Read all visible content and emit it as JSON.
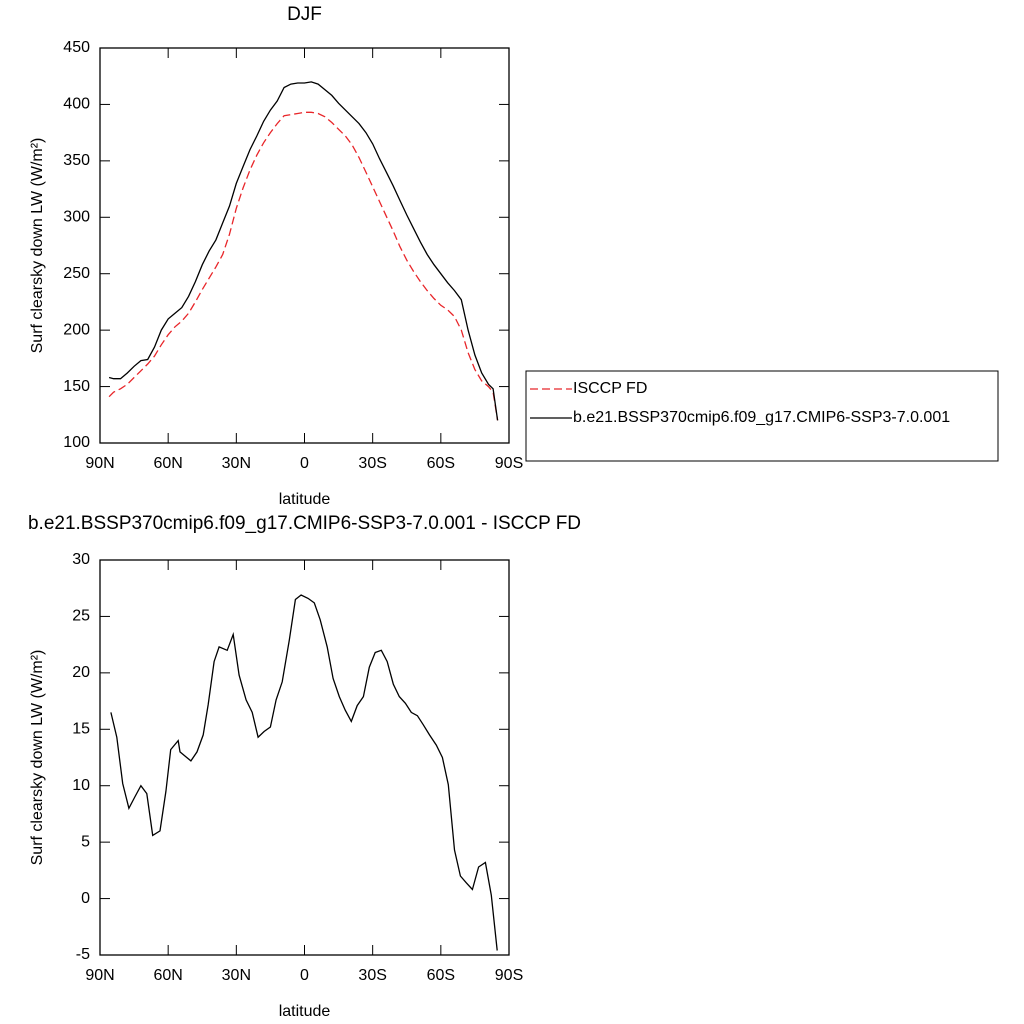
{
  "chart_data": [
    {
      "type": "line",
      "title": "DJF",
      "xlabel": "latitude",
      "ylabel": "Surf clearsky down LW (W/m²)",
      "xlim": [
        90,
        -90
      ],
      "xticks": [
        {
          "value": 90,
          "label": "90N"
        },
        {
          "value": 60,
          "label": "60N"
        },
        {
          "value": 30,
          "label": "30N"
        },
        0,
        {
          "value": -30,
          "label": "30S"
        },
        {
          "value": -60,
          "label": "60S"
        },
        {
          "value": -90,
          "label": "90S"
        }
      ],
      "ylim": [
        100,
        450
      ],
      "yticks": [
        100,
        150,
        200,
        250,
        300,
        350,
        400,
        450
      ],
      "legend": "right",
      "x": [
        86,
        84,
        81,
        78,
        75,
        72,
        69,
        66,
        63,
        60,
        57,
        54,
        51,
        48,
        45,
        42,
        39,
        36,
        33,
        30,
        27,
        24,
        21,
        18,
        15,
        12,
        9,
        6,
        3,
        0,
        -3,
        -6,
        -9,
        -12,
        -15,
        -18,
        -21,
        -24,
        -27,
        -30,
        -33,
        -36,
        -39,
        -42,
        -45,
        -48,
        -51,
        -54,
        -57,
        -60,
        -63,
        -66,
        -69,
        -72,
        -75,
        -78,
        -81,
        -83,
        -85
      ],
      "series": [
        {
          "name": "ISCCP FD",
          "color": "#e8262a",
          "line_style": "dashed",
          "values": [
            141,
            145,
            148,
            152,
            158,
            164,
            170,
            177,
            187,
            196,
            203,
            208,
            215,
            225,
            236,
            246,
            256,
            267,
            285,
            308,
            326,
            342,
            355,
            366,
            375,
            383,
            390,
            391,
            392,
            393,
            393,
            392,
            389,
            384,
            378,
            372,
            364,
            353,
            340,
            327,
            314,
            301,
            288,
            274,
            262,
            252,
            243,
            235,
            228,
            222,
            218,
            212,
            200,
            180,
            165,
            155,
            150,
            145,
            120
          ]
        },
        {
          "name": "b.e21.BSSP370cmip6.f09_g17.CMIP6-SSP3-7.0.001",
          "color": "#000000",
          "line_style": "solid",
          "values": [
            158,
            157,
            157,
            162,
            168,
            173,
            174,
            185,
            200,
            210,
            215,
            220,
            230,
            243,
            258,
            270,
            280,
            295,
            310,
            330,
            345,
            360,
            372,
            385,
            395,
            403,
            415,
            418,
            419,
            419,
            420,
            418,
            413,
            408,
            401,
            395,
            389,
            383,
            375,
            365,
            352,
            340,
            328,
            315,
            302,
            290,
            278,
            267,
            258,
            250,
            242,
            235,
            227,
            200,
            178,
            162,
            152,
            148,
            120
          ]
        }
      ]
    },
    {
      "type": "line",
      "title": "b.e21.BSSP370cmip6.f09_g17.CMIP6-SSP3-7.0.001 - ISCCP FD",
      "xlabel": "latitude",
      "ylabel": "Surf clearsky down LW (W/m²)",
      "xlim": [
        90,
        -90
      ],
      "xticks": [
        {
          "value": 90,
          "label": "90N"
        },
        {
          "value": 60,
          "label": "60N"
        },
        {
          "value": 30,
          "label": "30N"
        },
        0,
        {
          "value": -30,
          "label": "30S"
        },
        {
          "value": -60,
          "label": "60S"
        },
        {
          "value": -90,
          "label": "90S"
        }
      ],
      "ylim": [
        -5,
        30
      ],
      "yticks": [
        -5,
        0,
        5,
        10,
        15,
        20,
        25,
        30
      ],
      "x": [
        85.2,
        82.6,
        80,
        77.3,
        74.7,
        72,
        69.4,
        66.8,
        63.6,
        61,
        58.9,
        55.6,
        54.8,
        52.4,
        50,
        47.3,
        44.6,
        42.4,
        39.8,
        37.6,
        34,
        31.4,
        28.8,
        25.7,
        23,
        20.4,
        17.8,
        15,
        12.5,
        9.8,
        6.7,
        4,
        1.5,
        -1.6,
        -4.3,
        -6.9,
        -10,
        -12.6,
        -15.3,
        -17.9,
        -20.6,
        -23.2,
        -25.9,
        -28.5,
        -31.1,
        -33.8,
        -36.4,
        -39.1,
        -41.7,
        -44.4,
        -47,
        -49.7,
        -52.3,
        -55,
        -58,
        -60.7,
        -63.3,
        -66,
        -68.6,
        -71.2,
        -73.9,
        -76.6,
        -79.6,
        -82.2,
        -84.8
      ],
      "series": [
        {
          "name": "b.e21.BSSP370cmip6.f09_g17.CMIP6-SSP3-7.0.001 - ISCCP FD",
          "color": "#000000",
          "line_style": "solid",
          "values": [
            16.5,
            14.3,
            10.2,
            8.0,
            9.0,
            10.0,
            9.3,
            5.6,
            6.0,
            9.5,
            13.2,
            14.0,
            13.0,
            12.6,
            12.2,
            13.0,
            14.5,
            17.2,
            21.0,
            22.3,
            22.0,
            23.4,
            19.8,
            17.6,
            16.5,
            14.3,
            14.8,
            15.2,
            17.6,
            19.2,
            22.9,
            26.5,
            26.9,
            26.6,
            26.2,
            24.7,
            22.3,
            19.5,
            17.9,
            16.7,
            15.7,
            17.1,
            17.9,
            20.5,
            21.8,
            22.0,
            21.0,
            19.0,
            17.9,
            17.3,
            16.5,
            16.2,
            15.4,
            14.5,
            13.6,
            12.5,
            10.1,
            4.3,
            2.0,
            1.4,
            0.8,
            2.8,
            3.2,
            0.3,
            -4.6
          ]
        }
      ]
    }
  ]
}
